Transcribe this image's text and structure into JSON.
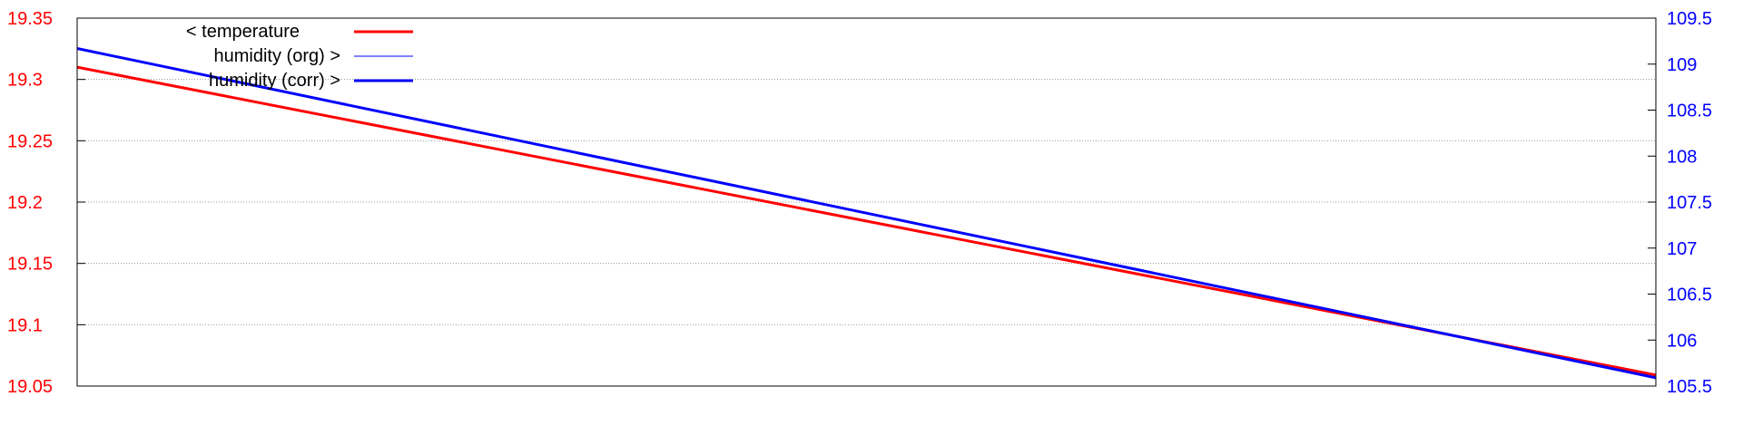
{
  "chart_data": {
    "type": "line",
    "x": [
      0,
      1
    ],
    "y_left": {
      "lim": [
        19.05,
        19.35
      ],
      "ticks": [
        19.05,
        19.1,
        19.15,
        19.2,
        19.25,
        19.3,
        19.35
      ],
      "tick_labels": [
        "19.05",
        "19.1",
        "19.15",
        "19.2",
        "19.25",
        "19.3",
        "19.35"
      ],
      "color": "#ff0000"
    },
    "y_right": {
      "lim": [
        105.5,
        109.5
      ],
      "ticks": [
        105.5,
        106,
        106.5,
        107,
        107.5,
        108,
        108.5,
        109,
        109.5
      ],
      "tick_labels": [
        "105.5",
        "106",
        "106.5",
        "107",
        "107.5",
        "108",
        "108.5",
        "109",
        "109.5"
      ],
      "color": "#0000ff"
    },
    "grid": true,
    "legend_position": "top-left",
    "series": [
      {
        "name": "< temperature",
        "axis": "left",
        "values": [
          19.31,
          19.059
        ],
        "color": "#ff0000",
        "width": 3
      },
      {
        "name": "humidity (org) >",
        "axis": "right",
        "values": [
          109.17,
          105.59
        ],
        "color": "#0000ff",
        "width": 1
      },
      {
        "name": "humidity (corr) >",
        "axis": "right",
        "values": [
          109.17,
          105.59
        ],
        "color": "#0000ff",
        "width": 3
      }
    ]
  }
}
